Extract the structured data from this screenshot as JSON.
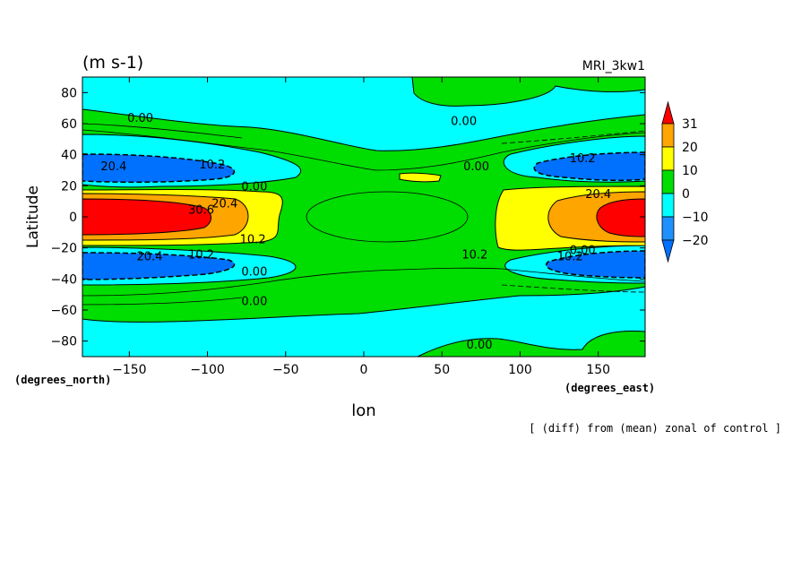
{
  "chart_data": {
    "type": "heatmap",
    "subtype": "filled-contour-map",
    "units_label": "(m s-1)",
    "run_label": "MRI_3kw1",
    "xlabel": "lon",
    "ylabel": "Latitude",
    "x_units": "(degrees_east)",
    "y_units": "(degrees_north)",
    "caption": "[ (diff) from (mean) zonal of control ]",
    "xlim": [
      -180,
      180
    ],
    "ylim": [
      -90,
      90
    ],
    "xticks": [
      -150,
      -100,
      -50,
      0,
      50,
      100,
      150
    ],
    "yticks": [
      -80,
      -60,
      -40,
      -20,
      0,
      20,
      40,
      60,
      80
    ],
    "xtick_labels": [
      "−150",
      "−100",
      "−50",
      "0",
      "50",
      "100",
      "150"
    ],
    "ytick_labels": [
      "−80",
      "−60",
      "−40",
      "−20",
      "0",
      "20",
      "40",
      "60",
      "80"
    ],
    "colorbar": {
      "levels": [
        -20,
        -10,
        0,
        10,
        20,
        31
      ],
      "labels": [
        "−20",
        "−10",
        "0",
        "10",
        "20",
        "31"
      ],
      "colors": [
        "#1e90ff",
        "#00ffff",
        "#00dd00",
        "#ffff00",
        "#ffa500",
        "#ff0000",
        "#0070ff"
      ]
    },
    "contour_labels": [
      {
        "text": "0.00",
        "lon": -143,
        "lat": 64
      },
      {
        "text": "0.00",
        "lon": 64,
        "lat": 62
      },
      {
        "text": "0.00",
        "lon": 72,
        "lat": 33
      },
      {
        "text": "0.00",
        "lon": -70,
        "lat": 20
      },
      {
        "text": "20.4",
        "lon": -160,
        "lat": 33
      },
      {
        "text": "10.2",
        "lon": -97,
        "lat": 34
      },
      {
        "text": "10.2",
        "lon": 140,
        "lat": 38
      },
      {
        "text": "20.4",
        "lon": 150,
        "lat": 15
      },
      {
        "text": "20.4",
        "lon": -89,
        "lat": 9
      },
      {
        "text": "30.6",
        "lon": -104,
        "lat": 5
      },
      {
        "text": "10.2",
        "lon": -71,
        "lat": -14
      },
      {
        "text": "10.2",
        "lon": 71,
        "lat": -24
      },
      {
        "text": "20.4",
        "lon": -137,
        "lat": -25
      },
      {
        "text": "10.2",
        "lon": -104,
        "lat": -24
      },
      {
        "text": "0.00",
        "lon": -70,
        "lat": -35
      },
      {
        "text": "0.00",
        "lon": 140,
        "lat": -21
      },
      {
        "text": "10.2",
        "lon": 132,
        "lat": -25
      },
      {
        "text": "0.00",
        "lon": -70,
        "lat": -54
      },
      {
        "text": "0.00",
        "lon": 74,
        "lat": -82
      }
    ]
  }
}
